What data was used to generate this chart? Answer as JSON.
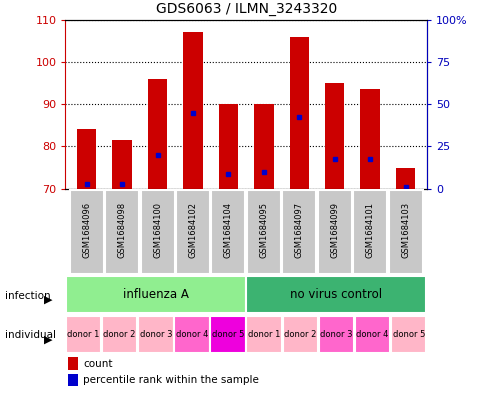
{
  "title": "GDS6063 / ILMN_3243320",
  "samples": [
    "GSM1684096",
    "GSM1684098",
    "GSM1684100",
    "GSM1684102",
    "GSM1684104",
    "GSM1684095",
    "GSM1684097",
    "GSM1684099",
    "GSM1684101",
    "GSM1684103"
  ],
  "count_values": [
    84,
    81.5,
    96,
    107,
    90,
    90,
    106,
    95,
    93.5,
    75
  ],
  "percentile_values": [
    71,
    71,
    78,
    88,
    73.5,
    74,
    87,
    77,
    77,
    70.5
  ],
  "ymin": 70,
  "ymax": 110,
  "yticks": [
    70,
    80,
    90,
    100,
    110
  ],
  "right_ytick_labels": [
    "0",
    "25",
    "50",
    "75",
    "100%"
  ],
  "infection_groups": [
    {
      "label": "influenza A",
      "start": 0,
      "end": 5,
      "color": "#90EE90"
    },
    {
      "label": "no virus control",
      "start": 5,
      "end": 10,
      "color": "#3CB371"
    }
  ],
  "individual_labels": [
    "donor 1",
    "donor 2",
    "donor 3",
    "donor 4",
    "donor 5",
    "donor 1",
    "donor 2",
    "donor 3",
    "donor 4",
    "donor 5"
  ],
  "individual_colors": [
    "#FFB6C8",
    "#FFB6C8",
    "#FFB6C8",
    "#FF66CC",
    "#EE00DD",
    "#FFB6C8",
    "#FFB6C8",
    "#FF66CC",
    "#FF66CC",
    "#FFB6C8"
  ],
  "bar_color": "#CC0000",
  "percentile_color": "#0000CC",
  "bar_width": 0.55,
  "sample_box_color": "#C8C8C8",
  "tick_color_left": "#CC0000",
  "tick_color_right": "#0000BB"
}
